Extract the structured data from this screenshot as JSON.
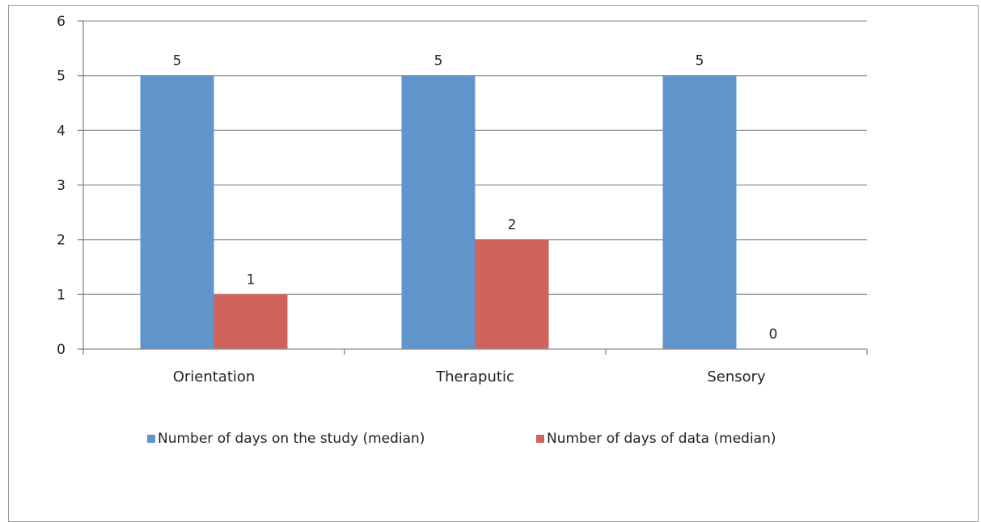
{
  "chart_data": {
    "type": "bar",
    "categories": [
      "Orientation",
      "Theraputic",
      "Sensory"
    ],
    "series": [
      {
        "name": "Number of days on the study (median)",
        "values": [
          5,
          5,
          5
        ],
        "color": "#5f95cb"
      },
      {
        "name": "Number of days of data (median)",
        "values": [
          1,
          2,
          0
        ],
        "color": "#d1635d"
      }
    ],
    "ylim": [
      0,
      6
    ],
    "yticks": [
      0,
      1,
      2,
      3,
      4,
      5,
      6
    ],
    "grid": true,
    "legend": "bottom",
    "data_labels": true
  }
}
